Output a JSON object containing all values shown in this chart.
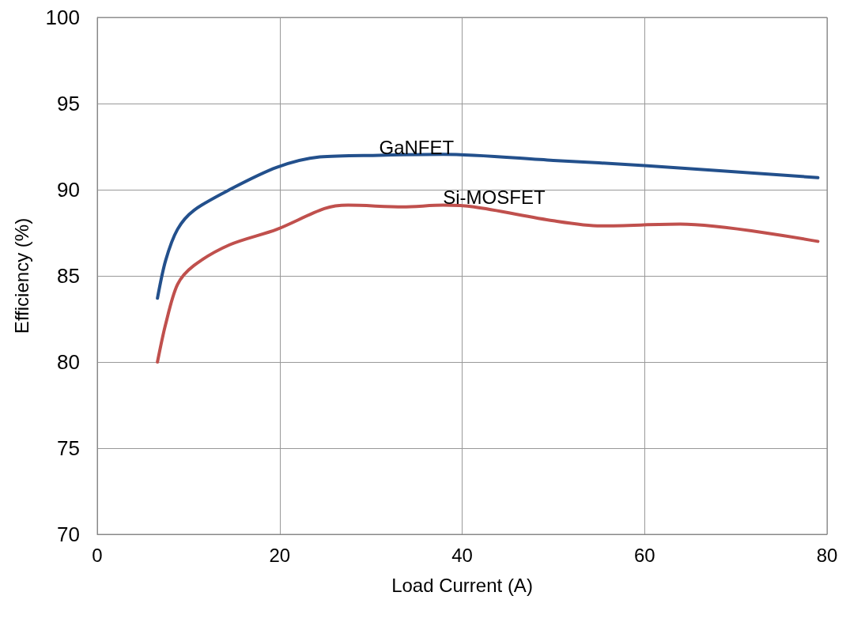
{
  "chart_data": {
    "type": "line",
    "xlabel": "Load Current (A)",
    "ylabel": "Efficiency (%)",
    "xlim": [
      0,
      80
    ],
    "xticks": [
      0,
      20,
      40,
      60,
      80
    ],
    "ylim": [
      70,
      100
    ],
    "yticks": [
      70,
      75,
      80,
      85,
      90,
      95,
      100
    ],
    "grid": true,
    "legend": false,
    "marker": "none",
    "line_style": "solid",
    "series": [
      {
        "name": "GaNFET",
        "color": "#23508c",
        "x": [
          6.6,
          7.5,
          8.8,
          10.6,
          14.5,
          19.7,
          24.4,
          30.9,
          37.9,
          50,
          60,
          79
        ],
        "values": [
          83.7,
          85.9,
          87.7,
          88.8,
          90.0,
          91.3,
          91.9,
          92.0,
          92.05,
          91.7,
          91.4,
          90.7
        ]
      },
      {
        "name": "Si-MOSFET",
        "color": "#c0504d",
        "x": [
          6.6,
          7.5,
          8.8,
          10.6,
          14.5,
          19.7,
          24.9,
          27.5,
          33.5,
          37.9,
          41.3,
          50,
          55.2,
          63.9,
          79
        ],
        "values": [
          80.0,
          82.2,
          84.5,
          85.6,
          86.8,
          87.7,
          88.9,
          89.1,
          89.0,
          89.1,
          89.0,
          88.2,
          87.9,
          88.0,
          87.0
        ]
      }
    ]
  }
}
